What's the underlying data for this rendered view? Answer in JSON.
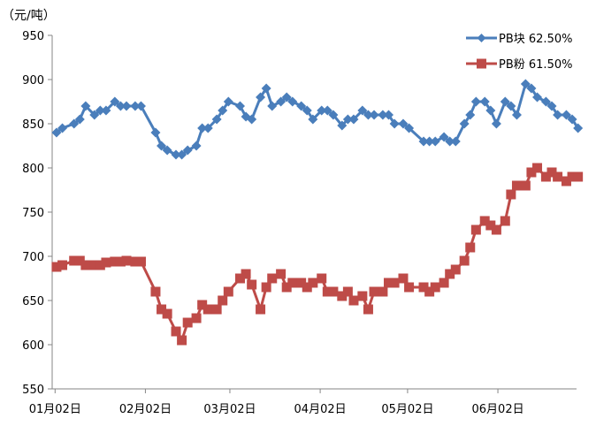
{
  "chart_data": {
    "type": "line",
    "unit_label": "（元/吨）",
    "ylim": [
      550,
      950
    ],
    "y_ticks": [
      550,
      600,
      650,
      700,
      750,
      800,
      850,
      900,
      950
    ],
    "x_ticks": [
      "01月02日",
      "02月02日",
      "03月02日",
      "04月02日",
      "05月02日",
      "06月02日"
    ],
    "grid": false,
    "legend_position": "top-right",
    "series": [
      {
        "name": "PB块 62.50%",
        "color": "#4a7ebb",
        "marker": "diamond",
        "x": [
          "01-02",
          "01-04",
          "01-08",
          "01-10",
          "01-12",
          "01-15",
          "01-17",
          "01-19",
          "01-22",
          "01-24",
          "01-26",
          "01-29",
          "01-31",
          "02-05",
          "02-07",
          "02-09",
          "02-12",
          "02-14",
          "02-16",
          "02-19",
          "02-21",
          "02-23",
          "02-26",
          "02-28",
          "03-01",
          "03-05",
          "03-07",
          "03-09",
          "03-12",
          "03-14",
          "03-16",
          "03-19",
          "03-21",
          "03-23",
          "03-26",
          "03-28",
          "03-30",
          "04-02",
          "04-04",
          "04-06",
          "04-09",
          "04-11",
          "04-13",
          "04-16",
          "04-18",
          "04-20",
          "04-23",
          "04-25",
          "04-27",
          "04-30",
          "05-02",
          "05-07",
          "05-09",
          "05-11",
          "05-14",
          "05-16",
          "05-18",
          "05-21",
          "05-23",
          "05-25",
          "05-28",
          "05-30",
          "06-01",
          "06-04",
          "06-06",
          "06-08",
          "06-11",
          "06-13",
          "06-15",
          "06-18",
          "06-20",
          "06-22",
          "06-25",
          "06-27",
          "06-29"
        ],
        "values": [
          840,
          845,
          850,
          855,
          870,
          860,
          865,
          865,
          875,
          870,
          870,
          870,
          870,
          840,
          825,
          820,
          815,
          815,
          820,
          825,
          845,
          845,
          855,
          865,
          875,
          870,
          858,
          855,
          880,
          890,
          870,
          875,
          880,
          875,
          870,
          865,
          855,
          865,
          865,
          860,
          848,
          855,
          855,
          865,
          860,
          860,
          860,
          860,
          850,
          850,
          845,
          830,
          830,
          830,
          835,
          830,
          830,
          850,
          860,
          875,
          875,
          865,
          850,
          875,
          870,
          860,
          895,
          890,
          880,
          875,
          870,
          860,
          860,
          855,
          845
        ]
      },
      {
        "name": "PB粉 61.50%",
        "color": "#be4b48",
        "marker": "square",
        "x": [
          "01-02",
          "01-04",
          "01-08",
          "01-10",
          "01-12",
          "01-15",
          "01-17",
          "01-19",
          "01-22",
          "01-24",
          "01-26",
          "01-29",
          "01-31",
          "02-05",
          "02-07",
          "02-09",
          "02-12",
          "02-14",
          "02-16",
          "02-19",
          "02-21",
          "02-23",
          "02-26",
          "02-28",
          "03-01",
          "03-05",
          "03-07",
          "03-09",
          "03-12",
          "03-14",
          "03-16",
          "03-19",
          "03-21",
          "03-23",
          "03-26",
          "03-28",
          "03-30",
          "04-02",
          "04-04",
          "04-06",
          "04-09",
          "04-11",
          "04-13",
          "04-16",
          "04-18",
          "04-20",
          "04-23",
          "04-25",
          "04-27",
          "04-30",
          "05-02",
          "05-07",
          "05-09",
          "05-11",
          "05-14",
          "05-16",
          "05-18",
          "05-21",
          "05-23",
          "05-25",
          "05-28",
          "05-30",
          "06-01",
          "06-04",
          "06-06",
          "06-08",
          "06-11",
          "06-13",
          "06-15",
          "06-18",
          "06-20",
          "06-22",
          "06-25",
          "06-27",
          "06-29"
        ],
        "values": [
          688,
          690,
          695,
          695,
          690,
          690,
          690,
          693,
          694,
          694,
          695,
          694,
          694,
          660,
          640,
          635,
          615,
          605,
          625,
          630,
          645,
          640,
          640,
          650,
          660,
          675,
          680,
          668,
          640,
          665,
          675,
          680,
          665,
          670,
          670,
          665,
          670,
          675,
          660,
          660,
          655,
          660,
          650,
          655,
          640,
          660,
          660,
          670,
          670,
          675,
          665,
          665,
          660,
          665,
          670,
          680,
          685,
          695,
          710,
          730,
          740,
          735,
          730,
          740,
          770,
          780,
          780,
          795,
          800,
          790,
          795,
          790,
          785,
          790,
          790
        ]
      }
    ]
  }
}
